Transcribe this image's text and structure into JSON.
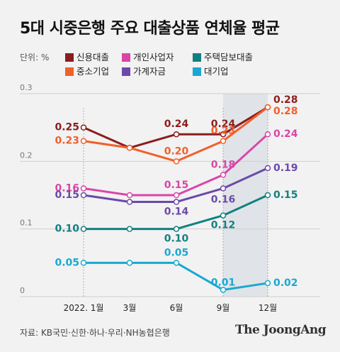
{
  "title": "5대 시중은행 주요 대출상품 연체율 평균",
  "unit_label": "단위: %",
  "source": "자료: KB국민·신한·하나·우리·NH농협은행",
  "brand": "The JoongAng",
  "chart_data": {
    "type": "line",
    "title": "5대 시중은행 주요 대출상품 연체율 평균",
    "ylabel": "단위: %",
    "ylim": [
      0,
      0.3
    ],
    "yticks": [
      "0",
      "0.1",
      "0.2",
      "0.3"
    ],
    "categories": [
      "2022. 1월",
      "3월",
      "6월",
      "9월",
      "12월"
    ],
    "grid": true,
    "highlight_range": [
      "9월",
      "12월"
    ],
    "legend_position": "top",
    "series": [
      {
        "name": "신용대출",
        "color": "#8b1d1d",
        "values": [
          0.25,
          0.22,
          0.24,
          0.24,
          0.28
        ],
        "labels": [
          "0.25",
          "",
          "0.24",
          "0.24",
          "0.28"
        ]
      },
      {
        "name": "중소기업",
        "color": "#f0602a",
        "values": [
          0.23,
          0.22,
          0.2,
          0.23,
          0.28
        ],
        "labels": [
          "0.23",
          "",
          "0.20",
          "0.23",
          "0.28"
        ]
      },
      {
        "name": "개인사업자",
        "color": "#d946a8",
        "values": [
          0.16,
          0.15,
          0.15,
          0.18,
          0.24
        ],
        "labels": [
          "0.16",
          "",
          "0.15",
          "0.18",
          "0.24"
        ]
      },
      {
        "name": "가계자금",
        "color": "#6b4aa8",
        "values": [
          0.15,
          0.14,
          0.14,
          0.16,
          0.19
        ],
        "labels": [
          "0.15",
          "",
          "0.14",
          "0.16",
          "0.19"
        ]
      },
      {
        "name": "주택담보대출",
        "color": "#138080",
        "values": [
          0.1,
          0.1,
          0.1,
          0.12,
          0.15
        ],
        "labels": [
          "0.10",
          "",
          "0.10",
          "0.12",
          "0.15"
        ]
      },
      {
        "name": "대기업",
        "color": "#1aa8d0",
        "values": [
          0.05,
          0.05,
          0.05,
          0.01,
          0.02
        ],
        "labels": [
          "0.05",
          "",
          "0.05",
          "0.01",
          "0.02"
        ]
      }
    ]
  }
}
